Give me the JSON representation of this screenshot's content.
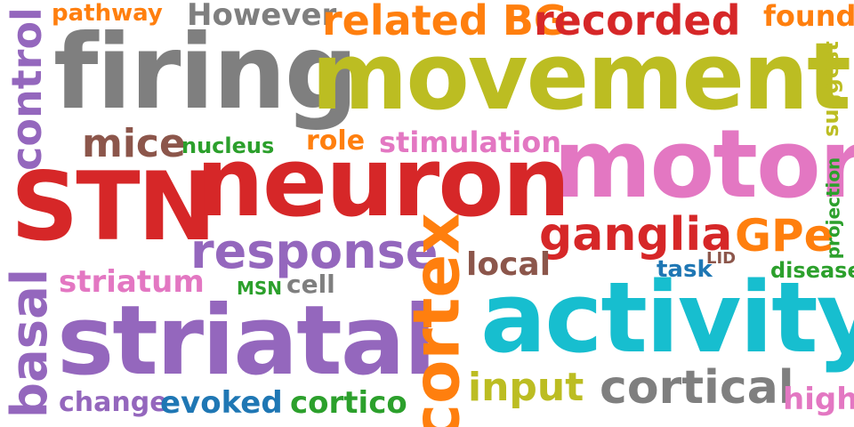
{
  "words": {
    "pathway": "pathway",
    "however": "However",
    "related": "related BG",
    "recorded": "recorded",
    "found": "found",
    "control": "control",
    "firing": "firing",
    "movement": "movement",
    "suggest": "suggest",
    "mice": "mice",
    "nucleus": "nucleus",
    "role": "role",
    "stimulation": "stimulation",
    "motor": "motor",
    "stn": "STN",
    "neuron": "neuron",
    "ganglia": "ganglia",
    "gpe": "GPe",
    "lid": "LID",
    "projection": "projection",
    "response": "response",
    "local": "local",
    "task": "task",
    "disease": "disease",
    "striatum": "striatum",
    "msn": "MSN",
    "cell": "cell",
    "cortex": "cortex",
    "activity": "activity",
    "basal": "basal",
    "striatal": "striatal",
    "input": "input",
    "cortical": "cortical",
    "high": "high",
    "change": "change",
    "evoked": "evoked",
    "cortico": "cortico"
  },
  "colors": {
    "orange": "#ff7f0e",
    "gray": "#7f7f7f",
    "red": "#d62728",
    "olive": "#bcbd22",
    "purple": "#9467bd",
    "brown": "#8c564b",
    "green": "#2ca02c",
    "pink": "#e377c2",
    "cyan": "#17becf",
    "blue": "#1f77b4"
  }
}
